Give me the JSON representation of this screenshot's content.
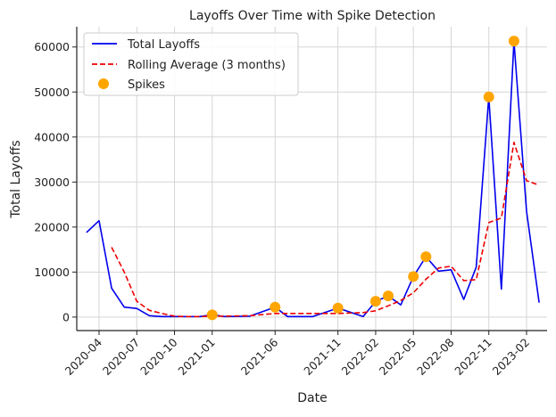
{
  "chart_data": {
    "type": "line",
    "title": "Layoffs Over Time with Spike Detection",
    "xlabel": "Date",
    "ylabel": "Total Layoffs",
    "x_ticks": [
      "2020-04",
      "2020-07",
      "2020-10",
      "2021-01",
      "2021-06",
      "2021-11",
      "2022-02",
      "2022-05",
      "2022-08",
      "2022-11",
      "2023-02"
    ],
    "y_ticks": [
      "0",
      "10000",
      "20000",
      "30000",
      "40000",
      "50000",
      "60000"
    ],
    "ylim": [
      -3000,
      64500
    ],
    "grid": true,
    "legend_position": "top-left",
    "x_dates": [
      "2020-03",
      "2020-04",
      "2020-05",
      "2020-06",
      "2020-07",
      "2020-08",
      "2020-09",
      "2020-10",
      "2020-11",
      "2020-12",
      "2021-01",
      "2021-02",
      "2021-04",
      "2021-06",
      "2021-07",
      "2021-09",
      "2021-11",
      "2022-01",
      "2022-02",
      "2022-03",
      "2022-04",
      "2022-05",
      "2022-06",
      "2022-07",
      "2022-08",
      "2022-09",
      "2022-10",
      "2022-11",
      "2022-12",
      "2023-01",
      "2023-02",
      "2023-03"
    ],
    "series": [
      {
        "name": "Total Layoffs",
        "style": "solid",
        "color": "#0000ee",
        "values": [
          18800,
          21400,
          6400,
          2200,
          1900,
          300,
          100,
          100,
          100,
          100,
          500,
          100,
          200,
          2200,
          100,
          100,
          2000,
          100,
          3500,
          4700,
          2700,
          9000,
          13400,
          10200,
          10500,
          3900,
          11100,
          48900,
          6200,
          61300,
          23500,
          3200
        ]
      },
      {
        "name": "Rolling Average (3 months)",
        "style": "dashed",
        "color": "#ee0000",
        "values": [
          null,
          null,
          15500,
          10000,
          3500,
          1500,
          800,
          200,
          100,
          100,
          200,
          200,
          300,
          800,
          800,
          800,
          800,
          1000,
          1400,
          2500,
          3700,
          5400,
          8400,
          10900,
          11300,
          8100,
          8300,
          21000,
          22000,
          38800,
          30300,
          29300
        ]
      }
    ],
    "spikes": {
      "name": "Spikes",
      "color": "#ffa500",
      "dates": [
        "2021-01",
        "2021-06",
        "2021-11",
        "2022-02",
        "2022-03",
        "2022-05",
        "2022-06",
        "2022-11",
        "2023-01"
      ],
      "values": [
        500,
        2200,
        2000,
        3500,
        4700,
        9000,
        13400,
        48900,
        61300
      ]
    }
  }
}
